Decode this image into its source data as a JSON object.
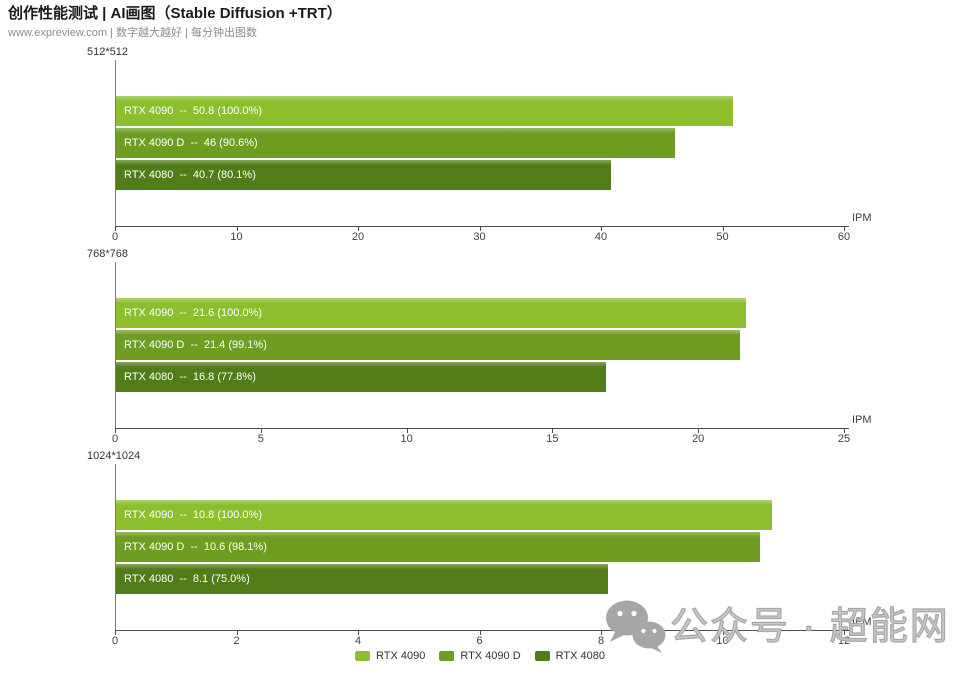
{
  "header": {
    "title": "创作性能测试 | AI画图（Stable Diffusion +TRT）",
    "subtitle": "www.expreview.com | 数字越大越好 | 每分钟出图数"
  },
  "colors": {
    "rtx_4090": "#8CBE2D",
    "rtx_4090_d": "#6F9D22",
    "rtx_4080": "#527C18",
    "axis": "#4d4d4d",
    "watermark_gray": "#a6a6a6"
  },
  "legend": {
    "items": [
      {
        "label": "RTX 4090",
        "color": "#8CBE2D"
      },
      {
        "label": "RTX 4090 D",
        "color": "#6F9D22"
      },
      {
        "label": "RTX 4080",
        "color": "#527C18"
      }
    ]
  },
  "watermark": {
    "icon": "wechat-icon",
    "text": "公众号 · 超能网"
  },
  "chart_data": [
    {
      "type": "bar",
      "orientation": "horizontal",
      "title": "512*512",
      "xlabel": "IPM",
      "xlim": [
        0,
        60
      ],
      "ticks": [
        0,
        10,
        20,
        30,
        40,
        50,
        60
      ],
      "categories": [
        "RTX 4090",
        "RTX 4090 D",
        "RTX 4080"
      ],
      "values": [
        50.8,
        46,
        40.7
      ],
      "bars": [
        {
          "label": "RTX 4090",
          "value": 50.8,
          "percent": "100.0%",
          "display": "RTX 4090  --  50.8 (100.0%)",
          "color": "#8CBE2D"
        },
        {
          "label": "RTX 4090 D",
          "value": 46,
          "percent": "90.6%",
          "display": "RTX 4090 D  --  46 (90.6%)",
          "color": "#6F9D22"
        },
        {
          "label": "RTX 4080",
          "value": 40.7,
          "percent": "80.1%",
          "display": "RTX 4080  --  40.7 (80.1%)",
          "color": "#527C18"
        }
      ]
    },
    {
      "type": "bar",
      "orientation": "horizontal",
      "title": "768*768",
      "xlabel": "IPM",
      "xlim": [
        0,
        25
      ],
      "ticks": [
        0,
        5,
        10,
        15,
        20,
        25
      ],
      "categories": [
        "RTX 4090",
        "RTX 4090 D",
        "RTX 4080"
      ],
      "values": [
        21.6,
        21.4,
        16.8
      ],
      "bars": [
        {
          "label": "RTX 4090",
          "value": 21.6,
          "percent": "100.0%",
          "display": "RTX 4090  --  21.6 (100.0%)",
          "color": "#8CBE2D"
        },
        {
          "label": "RTX 4090 D",
          "value": 21.4,
          "percent": "99.1%",
          "display": "RTX 4090 D  --  21.4 (99.1%)",
          "color": "#6F9D22"
        },
        {
          "label": "RTX 4080",
          "value": 16.8,
          "percent": "77.8%",
          "display": "RTX 4080  --  16.8 (77.8%)",
          "color": "#527C18"
        }
      ]
    },
    {
      "type": "bar",
      "orientation": "horizontal",
      "title": "1024*1024",
      "xlabel": "IPM",
      "xlim": [
        0,
        12
      ],
      "ticks": [
        0,
        2,
        4,
        6,
        8,
        10,
        12
      ],
      "categories": [
        "RTX 4090",
        "RTX 4090 D",
        "RTX 4080"
      ],
      "values": [
        10.8,
        10.6,
        8.1
      ],
      "bars": [
        {
          "label": "RTX 4090",
          "value": 10.8,
          "percent": "100.0%",
          "display": "RTX 4090  --  10.8 (100.0%)",
          "color": "#8CBE2D"
        },
        {
          "label": "RTX 4090 D",
          "value": 10.6,
          "percent": "98.1%",
          "display": "RTX 4090 D  --  10.6 (98.1%)",
          "color": "#6F9D22"
        },
        {
          "label": "RTX 4080",
          "value": 8.1,
          "percent": "75.0%",
          "display": "RTX 4080  --  8.1 (75.0%)",
          "color": "#527C18"
        }
      ]
    }
  ]
}
